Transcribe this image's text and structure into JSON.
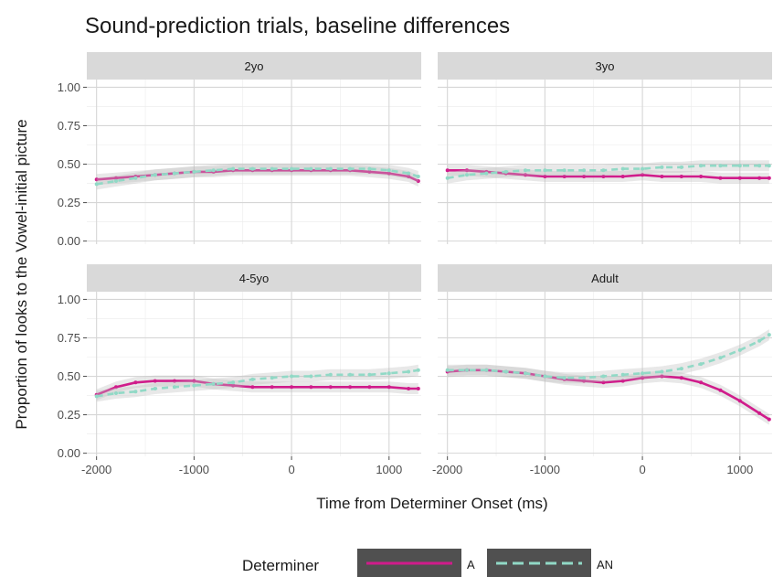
{
  "chart_data": {
    "type": "line",
    "title": "Sound-prediction trials, baseline differences",
    "xlabel": "Time from Determiner Onset (ms)",
    "ylabel": "Proportion of looks to the Vowel-initial picture",
    "xlim": [
      -2100,
      1330
    ],
    "ylim": [
      -0.02,
      1.05
    ],
    "x_ticks": [
      -2000,
      -1000,
      0,
      1000
    ],
    "x_tick_labels": [
      "-2000",
      "-1000",
      "0",
      "1000"
    ],
    "y_ticks": [
      0,
      0.25,
      0.5,
      0.75,
      1
    ],
    "y_tick_labels": [
      "0.00",
      "0.25",
      "0.50",
      "0.75",
      "1.00"
    ],
    "grid": true,
    "legend": {
      "title": "Determiner",
      "placement": "bottom",
      "entries": [
        {
          "label": "A",
          "color": "#d01c8b",
          "style": "solid"
        },
        {
          "label": "AN",
          "color": "#91d9c6",
          "style": "dashed"
        }
      ]
    },
    "x": [
      -2000,
      -1800,
      -1600,
      -1400,
      -1200,
      -1000,
      -800,
      -600,
      -400,
      -200,
      0,
      200,
      400,
      600,
      800,
      1000,
      1200,
      1300
    ],
    "panels": [
      {
        "name": "2yo",
        "series": [
          {
            "name": "A",
            "values": [
              0.4,
              0.41,
              0.42,
              0.43,
              0.44,
              0.45,
              0.45,
              0.46,
              0.46,
              0.46,
              0.46,
              0.46,
              0.46,
              0.46,
              0.45,
              0.44,
              0.42,
              0.39
            ]
          },
          {
            "name": "AN",
            "values": [
              0.37,
              0.39,
              0.41,
              0.43,
              0.44,
              0.45,
              0.46,
              0.47,
              0.47,
              0.47,
              0.47,
              0.47,
              0.47,
              0.47,
              0.47,
              0.46,
              0.44,
              0.42
            ]
          }
        ]
      },
      {
        "name": "3yo",
        "series": [
          {
            "name": "A",
            "values": [
              0.46,
              0.46,
              0.45,
              0.44,
              0.43,
              0.42,
              0.42,
              0.42,
              0.42,
              0.42,
              0.43,
              0.42,
              0.42,
              0.42,
              0.41,
              0.41,
              0.41,
              0.41
            ]
          },
          {
            "name": "AN",
            "values": [
              0.41,
              0.43,
              0.44,
              0.45,
              0.46,
              0.46,
              0.46,
              0.46,
              0.46,
              0.47,
              0.47,
              0.48,
              0.48,
              0.49,
              0.49,
              0.49,
              0.49,
              0.49
            ]
          }
        ]
      },
      {
        "name": "4-5yo",
        "series": [
          {
            "name": "A",
            "values": [
              0.38,
              0.43,
              0.46,
              0.47,
              0.47,
              0.47,
              0.45,
              0.44,
              0.43,
              0.43,
              0.43,
              0.43,
              0.43,
              0.43,
              0.43,
              0.43,
              0.42,
              0.42
            ]
          },
          {
            "name": "AN",
            "values": [
              0.37,
              0.39,
              0.4,
              0.42,
              0.43,
              0.44,
              0.45,
              0.46,
              0.48,
              0.49,
              0.5,
              0.5,
              0.51,
              0.51,
              0.51,
              0.52,
              0.53,
              0.54
            ]
          }
        ]
      },
      {
        "name": "Adult",
        "series": [
          {
            "name": "A",
            "values": [
              0.53,
              0.54,
              0.54,
              0.53,
              0.52,
              0.5,
              0.48,
              0.47,
              0.46,
              0.47,
              0.49,
              0.5,
              0.49,
              0.46,
              0.41,
              0.34,
              0.26,
              0.22
            ]
          },
          {
            "name": "AN",
            "values": [
              0.54,
              0.54,
              0.54,
              0.53,
              0.52,
              0.5,
              0.49,
              0.49,
              0.5,
              0.51,
              0.52,
              0.53,
              0.55,
              0.58,
              0.62,
              0.67,
              0.73,
              0.77
            ]
          }
        ]
      }
    ]
  }
}
